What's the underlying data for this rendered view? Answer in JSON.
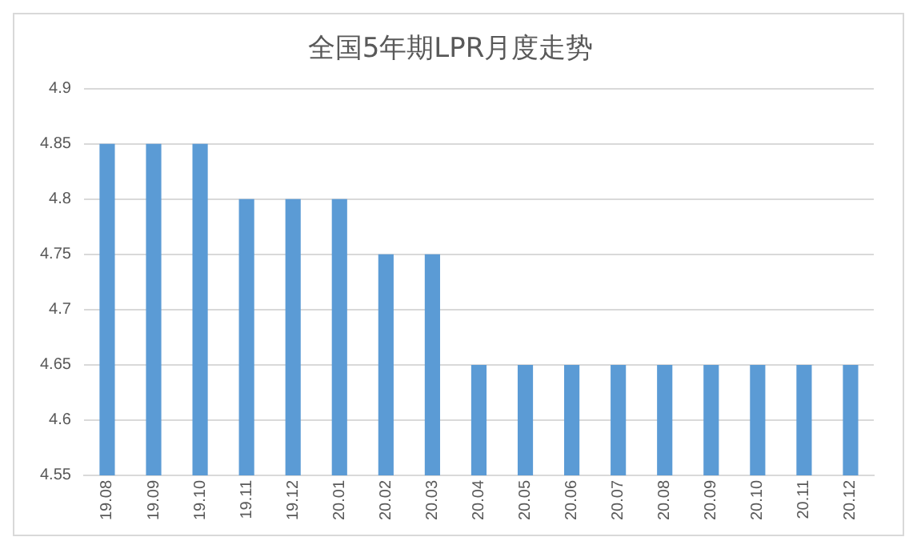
{
  "chart_data": {
    "type": "bar",
    "title": "全国5年期LPR月度走势",
    "categories": [
      "19.08",
      "19.09",
      "19.10",
      "19.11",
      "19.12",
      "20.01",
      "20.02",
      "20.03",
      "20.04",
      "20.05",
      "20.06",
      "20.07",
      "20.08",
      "20.09",
      "20.10",
      "20.11",
      "20.12"
    ],
    "values": [
      4.85,
      4.85,
      4.85,
      4.8,
      4.8,
      4.8,
      4.75,
      4.75,
      4.65,
      4.65,
      4.65,
      4.65,
      4.65,
      4.65,
      4.65,
      4.65,
      4.65
    ],
    "color": "#5b9bd5",
    "ylim": [
      4.55,
      4.9
    ],
    "yticks": [
      4.55,
      4.6,
      4.65,
      4.7,
      4.75,
      4.8,
      4.85,
      4.9
    ],
    "grid": "y",
    "legend": false
  }
}
